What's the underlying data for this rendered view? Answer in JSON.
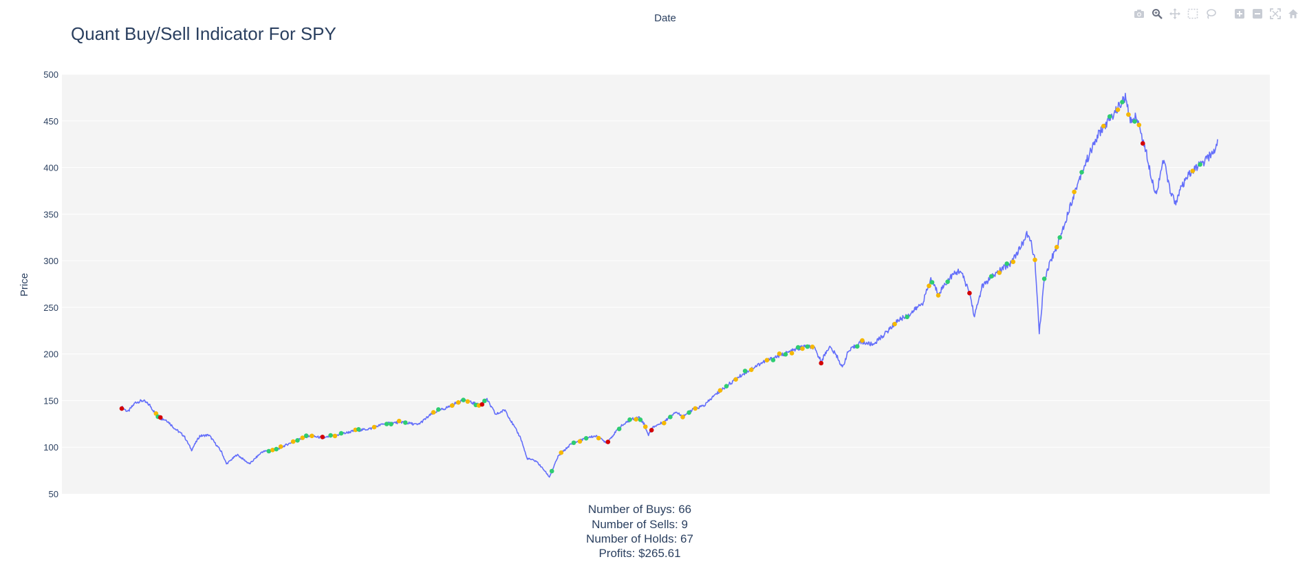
{
  "chart_data": {
    "type": "line",
    "title": "Quant Buy/Sell Indicator For SPY",
    "xlabel": "Date",
    "ylabel": "Price",
    "ylim": [
      50,
      500
    ],
    "y_ticks": [
      50,
      100,
      150,
      200,
      250,
      300,
      350,
      400,
      450,
      500
    ],
    "x_tick_labels": "none",
    "grid": true,
    "colors": {
      "line": "#636efa",
      "buy": "#2ecc71",
      "hold": "#f5b800",
      "sell": "#d40000",
      "plot_bg": "#f4f4f4",
      "text": "#2a3f5f"
    },
    "price_anchors": [
      [
        0,
        143
      ],
      [
        10,
        138
      ],
      [
        22,
        148
      ],
      [
        34,
        150
      ],
      [
        45,
        145
      ],
      [
        55,
        135
      ],
      [
        62,
        131
      ],
      [
        72,
        129
      ],
      [
        85,
        120
      ],
      [
        100,
        112
      ],
      [
        112,
        97
      ],
      [
        125,
        112
      ],
      [
        140,
        113
      ],
      [
        160,
        95
      ],
      [
        168,
        82
      ],
      [
        185,
        92
      ],
      [
        205,
        82
      ],
      [
        225,
        95
      ],
      [
        250,
        98
      ],
      [
        275,
        106
      ],
      [
        300,
        112
      ],
      [
        325,
        110
      ],
      [
        345,
        113
      ],
      [
        370,
        117
      ],
      [
        400,
        120
      ],
      [
        420,
        125
      ],
      [
        450,
        127
      ],
      [
        475,
        124
      ],
      [
        500,
        137
      ],
      [
        520,
        142
      ],
      [
        545,
        150
      ],
      [
        560,
        148
      ],
      [
        575,
        145
      ],
      [
        585,
        152
      ],
      [
        600,
        135
      ],
      [
        615,
        140
      ],
      [
        627,
        125
      ],
      [
        640,
        110
      ],
      [
        650,
        88
      ],
      [
        665,
        85
      ],
      [
        678,
        75
      ],
      [
        686,
        68
      ],
      [
        700,
        90
      ],
      [
        720,
        103
      ],
      [
        745,
        110
      ],
      [
        760,
        112
      ],
      [
        778,
        105
      ],
      [
        800,
        122
      ],
      [
        818,
        130
      ],
      [
        830,
        132
      ],
      [
        838,
        125
      ],
      [
        845,
        113
      ],
      [
        853,
        122
      ],
      [
        870,
        127
      ],
      [
        888,
        138
      ],
      [
        900,
        133
      ],
      [
        915,
        140
      ],
      [
        935,
        145
      ],
      [
        950,
        155
      ],
      [
        975,
        168
      ],
      [
        1000,
        180
      ],
      [
        1025,
        190
      ],
      [
        1050,
        197
      ],
      [
        1075,
        203
      ],
      [
        1095,
        208
      ],
      [
        1110,
        207
      ],
      [
        1122,
        192
      ],
      [
        1135,
        208
      ],
      [
        1148,
        197
      ],
      [
        1156,
        185
      ],
      [
        1165,
        202
      ],
      [
        1185,
        213
      ],
      [
        1205,
        210
      ],
      [
        1225,
        222
      ],
      [
        1245,
        236
      ],
      [
        1265,
        243
      ],
      [
        1285,
        255
      ],
      [
        1298,
        280
      ],
      [
        1310,
        265
      ],
      [
        1330,
        283
      ],
      [
        1345,
        290
      ],
      [
        1360,
        266
      ],
      [
        1368,
        240
      ],
      [
        1380,
        272
      ],
      [
        1395,
        282
      ],
      [
        1410,
        290
      ],
      [
        1425,
        297
      ],
      [
        1440,
        312
      ],
      [
        1452,
        328
      ],
      [
        1458,
        322
      ],
      [
        1465,
        300
      ],
      [
        1472,
        222
      ],
      [
        1480,
        280
      ],
      [
        1490,
        300
      ],
      [
        1502,
        318
      ],
      [
        1515,
        345
      ],
      [
        1528,
        372
      ],
      [
        1540,
        395
      ],
      [
        1555,
        418
      ],
      [
        1568,
        437
      ],
      [
        1580,
        447
      ],
      [
        1592,
        458
      ],
      [
        1602,
        468
      ],
      [
        1610,
        475
      ],
      [
        1618,
        450
      ],
      [
        1628,
        455
      ],
      [
        1638,
        430
      ],
      [
        1645,
        412
      ],
      [
        1652,
        390
      ],
      [
        1660,
        370
      ],
      [
        1666,
        395
      ],
      [
        1672,
        408
      ],
      [
        1680,
        380
      ],
      [
        1690,
        362
      ],
      [
        1700,
        378
      ],
      [
        1712,
        392
      ],
      [
        1724,
        400
      ],
      [
        1735,
        405
      ],
      [
        1745,
        412
      ],
      [
        1753,
        418
      ],
      [
        1758,
        428
      ]
    ],
    "signals": [
      {
        "x": 0,
        "type": "sell"
      },
      {
        "x": 55,
        "type": "hold"
      },
      {
        "x": 58,
        "type": "buy"
      },
      {
        "x": 62,
        "type": "sell"
      },
      {
        "x": 236,
        "type": "buy"
      },
      {
        "x": 242,
        "type": "hold"
      },
      {
        "x": 248,
        "type": "buy"
      },
      {
        "x": 255,
        "type": "hold"
      },
      {
        "x": 275,
        "type": "hold"
      },
      {
        "x": 282,
        "type": "buy"
      },
      {
        "x": 290,
        "type": "hold"
      },
      {
        "x": 296,
        "type": "buy"
      },
      {
        "x": 305,
        "type": "hold"
      },
      {
        "x": 322,
        "type": "sell"
      },
      {
        "x": 335,
        "type": "buy"
      },
      {
        "x": 342,
        "type": "hold"
      },
      {
        "x": 352,
        "type": "buy"
      },
      {
        "x": 375,
        "type": "hold"
      },
      {
        "x": 380,
        "type": "buy"
      },
      {
        "x": 405,
        "type": "hold"
      },
      {
        "x": 425,
        "type": "buy"
      },
      {
        "x": 432,
        "type": "buy"
      },
      {
        "x": 445,
        "type": "hold"
      },
      {
        "x": 455,
        "type": "buy"
      },
      {
        "x": 500,
        "type": "hold"
      },
      {
        "x": 508,
        "type": "buy"
      },
      {
        "x": 530,
        "type": "hold"
      },
      {
        "x": 540,
        "type": "hold"
      },
      {
        "x": 548,
        "type": "buy"
      },
      {
        "x": 555,
        "type": "hold"
      },
      {
        "x": 568,
        "type": "buy"
      },
      {
        "x": 573,
        "type": "hold"
      },
      {
        "x": 578,
        "type": "sell"
      },
      {
        "x": 582,
        "type": "buy"
      },
      {
        "x": 690,
        "type": "buy"
      },
      {
        "x": 705,
        "type": "hold"
      },
      {
        "x": 725,
        "type": "buy"
      },
      {
        "x": 735,
        "type": "hold"
      },
      {
        "x": 745,
        "type": "buy"
      },
      {
        "x": 765,
        "type": "hold"
      },
      {
        "x": 780,
        "type": "sell"
      },
      {
        "x": 798,
        "type": "buy"
      },
      {
        "x": 815,
        "type": "buy"
      },
      {
        "x": 825,
        "type": "hold"
      },
      {
        "x": 832,
        "type": "buy"
      },
      {
        "x": 840,
        "type": "hold"
      },
      {
        "x": 850,
        "type": "sell"
      },
      {
        "x": 870,
        "type": "hold"
      },
      {
        "x": 880,
        "type": "buy"
      },
      {
        "x": 900,
        "type": "hold"
      },
      {
        "x": 910,
        "type": "buy"
      },
      {
        "x": 920,
        "type": "hold"
      },
      {
        "x": 960,
        "type": "hold"
      },
      {
        "x": 970,
        "type": "buy"
      },
      {
        "x": 985,
        "type": "hold"
      },
      {
        "x": 1000,
        "type": "buy"
      },
      {
        "x": 1010,
        "type": "hold"
      },
      {
        "x": 1035,
        "type": "hold"
      },
      {
        "x": 1045,
        "type": "buy"
      },
      {
        "x": 1055,
        "type": "hold"
      },
      {
        "x": 1065,
        "type": "buy"
      },
      {
        "x": 1075,
        "type": "hold"
      },
      {
        "x": 1085,
        "type": "buy"
      },
      {
        "x": 1092,
        "type": "hold"
      },
      {
        "x": 1100,
        "type": "buy"
      },
      {
        "x": 1108,
        "type": "hold"
      },
      {
        "x": 1122,
        "type": "sell"
      },
      {
        "x": 1180,
        "type": "buy"
      },
      {
        "x": 1188,
        "type": "hold"
      },
      {
        "x": 1240,
        "type": "hold"
      },
      {
        "x": 1260,
        "type": "buy"
      },
      {
        "x": 1295,
        "type": "hold"
      },
      {
        "x": 1300,
        "type": "buy"
      },
      {
        "x": 1310,
        "type": "hold"
      },
      {
        "x": 1325,
        "type": "buy"
      },
      {
        "x": 1360,
        "type": "sell"
      },
      {
        "x": 1395,
        "type": "buy"
      },
      {
        "x": 1408,
        "type": "hold"
      },
      {
        "x": 1420,
        "type": "buy"
      },
      {
        "x": 1430,
        "type": "hold"
      },
      {
        "x": 1465,
        "type": "hold"
      },
      {
        "x": 1480,
        "type": "buy"
      },
      {
        "x": 1500,
        "type": "hold"
      },
      {
        "x": 1505,
        "type": "buy"
      },
      {
        "x": 1528,
        "type": "hold"
      },
      {
        "x": 1540,
        "type": "buy"
      },
      {
        "x": 1575,
        "type": "hold"
      },
      {
        "x": 1585,
        "type": "buy"
      },
      {
        "x": 1598,
        "type": "hold"
      },
      {
        "x": 1605,
        "type": "buy"
      },
      {
        "x": 1615,
        "type": "hold"
      },
      {
        "x": 1625,
        "type": "buy"
      },
      {
        "x": 1632,
        "type": "hold"
      },
      {
        "x": 1638,
        "type": "sell"
      },
      {
        "x": 1718,
        "type": "hold"
      },
      {
        "x": 1730,
        "type": "buy"
      }
    ],
    "stats": [
      "Number of Buys: 66",
      "Number of Sells: 9",
      "Number of Holds: 67",
      "Profits: $265.61"
    ]
  },
  "modebar": {
    "icons": [
      "camera-icon",
      "zoom-icon",
      "pan-icon",
      "box-select-icon",
      "lasso-select-icon",
      "zoom-in-icon",
      "zoom-out-icon",
      "autoscale-icon",
      "reset-axes-icon"
    ]
  }
}
